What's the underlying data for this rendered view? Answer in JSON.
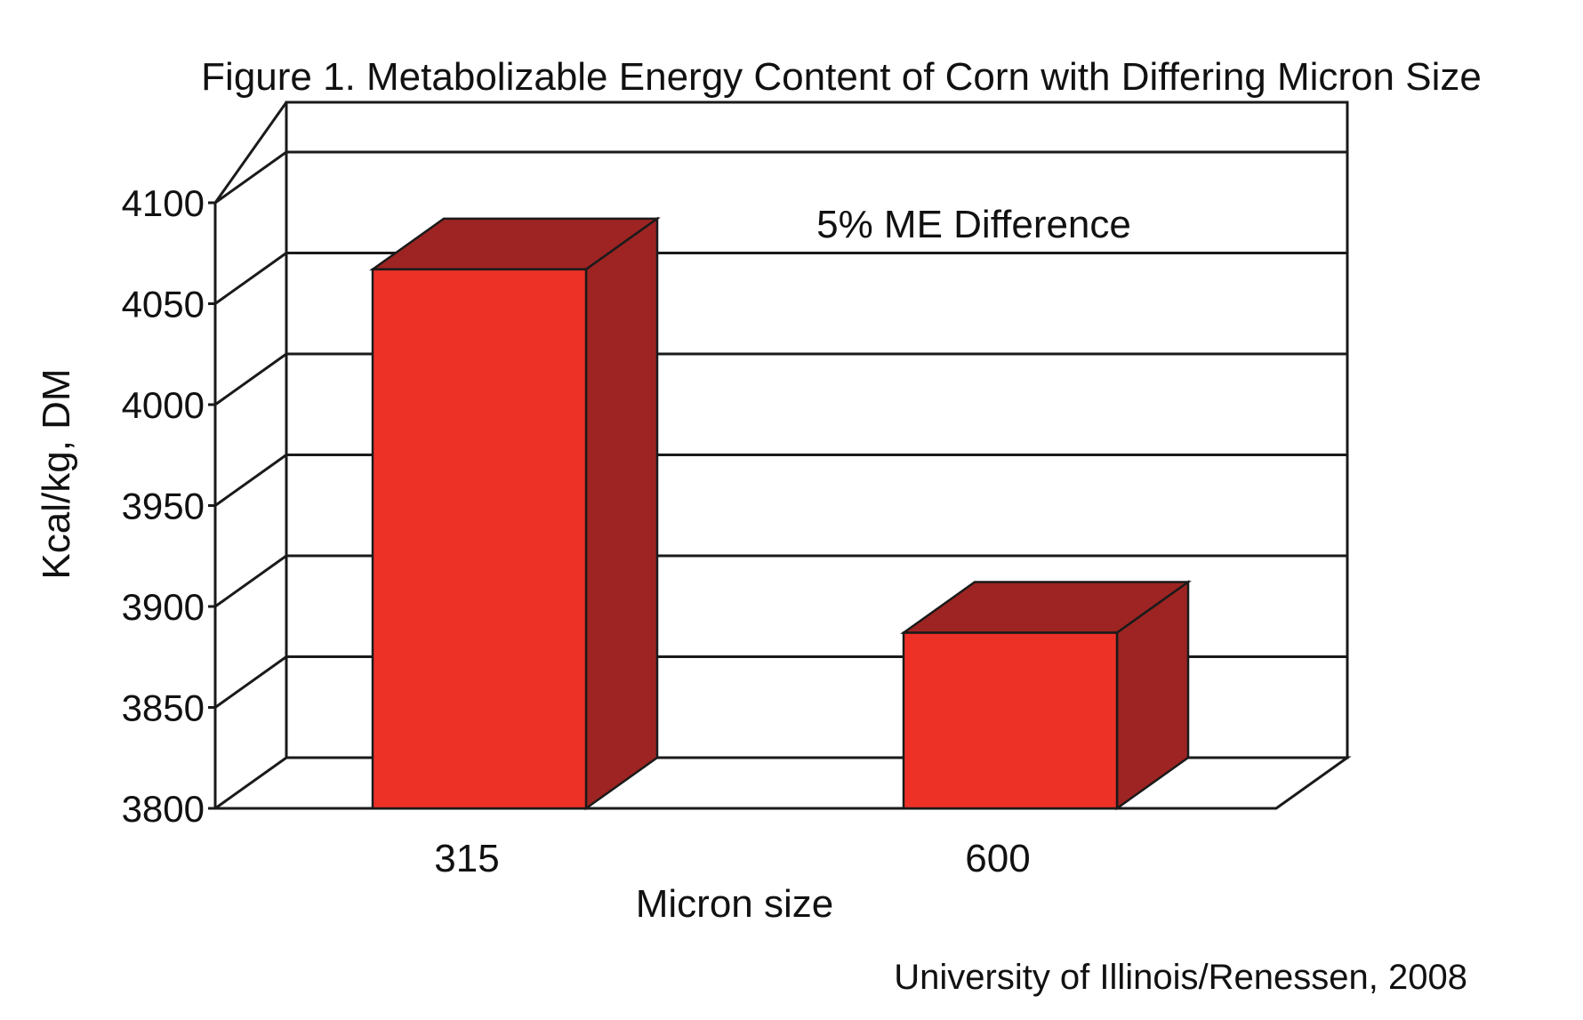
{
  "chart_data": {
    "type": "bar",
    "title": "Figure 1. Metabolizable Energy Content of Corn with Differing Micron Size",
    "xlabel": "Micron size",
    "ylabel": "Kcal/kg, DM",
    "categories": [
      "315",
      "600"
    ],
    "values": [
      4067,
      3887
    ],
    "ylim": [
      3800,
      4100
    ],
    "yticks": [
      "3800",
      "3850",
      "3900",
      "3950",
      "4000",
      "4050",
      "4100"
    ],
    "grid": true,
    "annotation": "5% ME Difference",
    "source": "University of Illinois/Renessen, 2008",
    "colors": {
      "bar_front": "#ee3127",
      "bar_top": "#9d2422",
      "bar_side": "#9d2422",
      "outline": "#1a1a1a"
    }
  }
}
